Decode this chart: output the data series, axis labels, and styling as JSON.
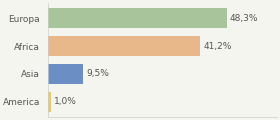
{
  "categories": [
    "Europa",
    "Africa",
    "Asia",
    "America"
  ],
  "values": [
    48.3,
    41.2,
    9.5,
    1.0
  ],
  "labels": [
    "48,3%",
    "41,2%",
    "9,5%",
    "1,0%"
  ],
  "bar_colors": [
    "#a8c49a",
    "#e8b88a",
    "#6b8fc4",
    "#e8c86a"
  ],
  "background_color": "#f5f5f0",
  "text_color": "#555555",
  "label_fontsize": 6.5,
  "category_fontsize": 6.5,
  "xlim": [
    0,
    62
  ],
  "bar_height": 0.72
}
